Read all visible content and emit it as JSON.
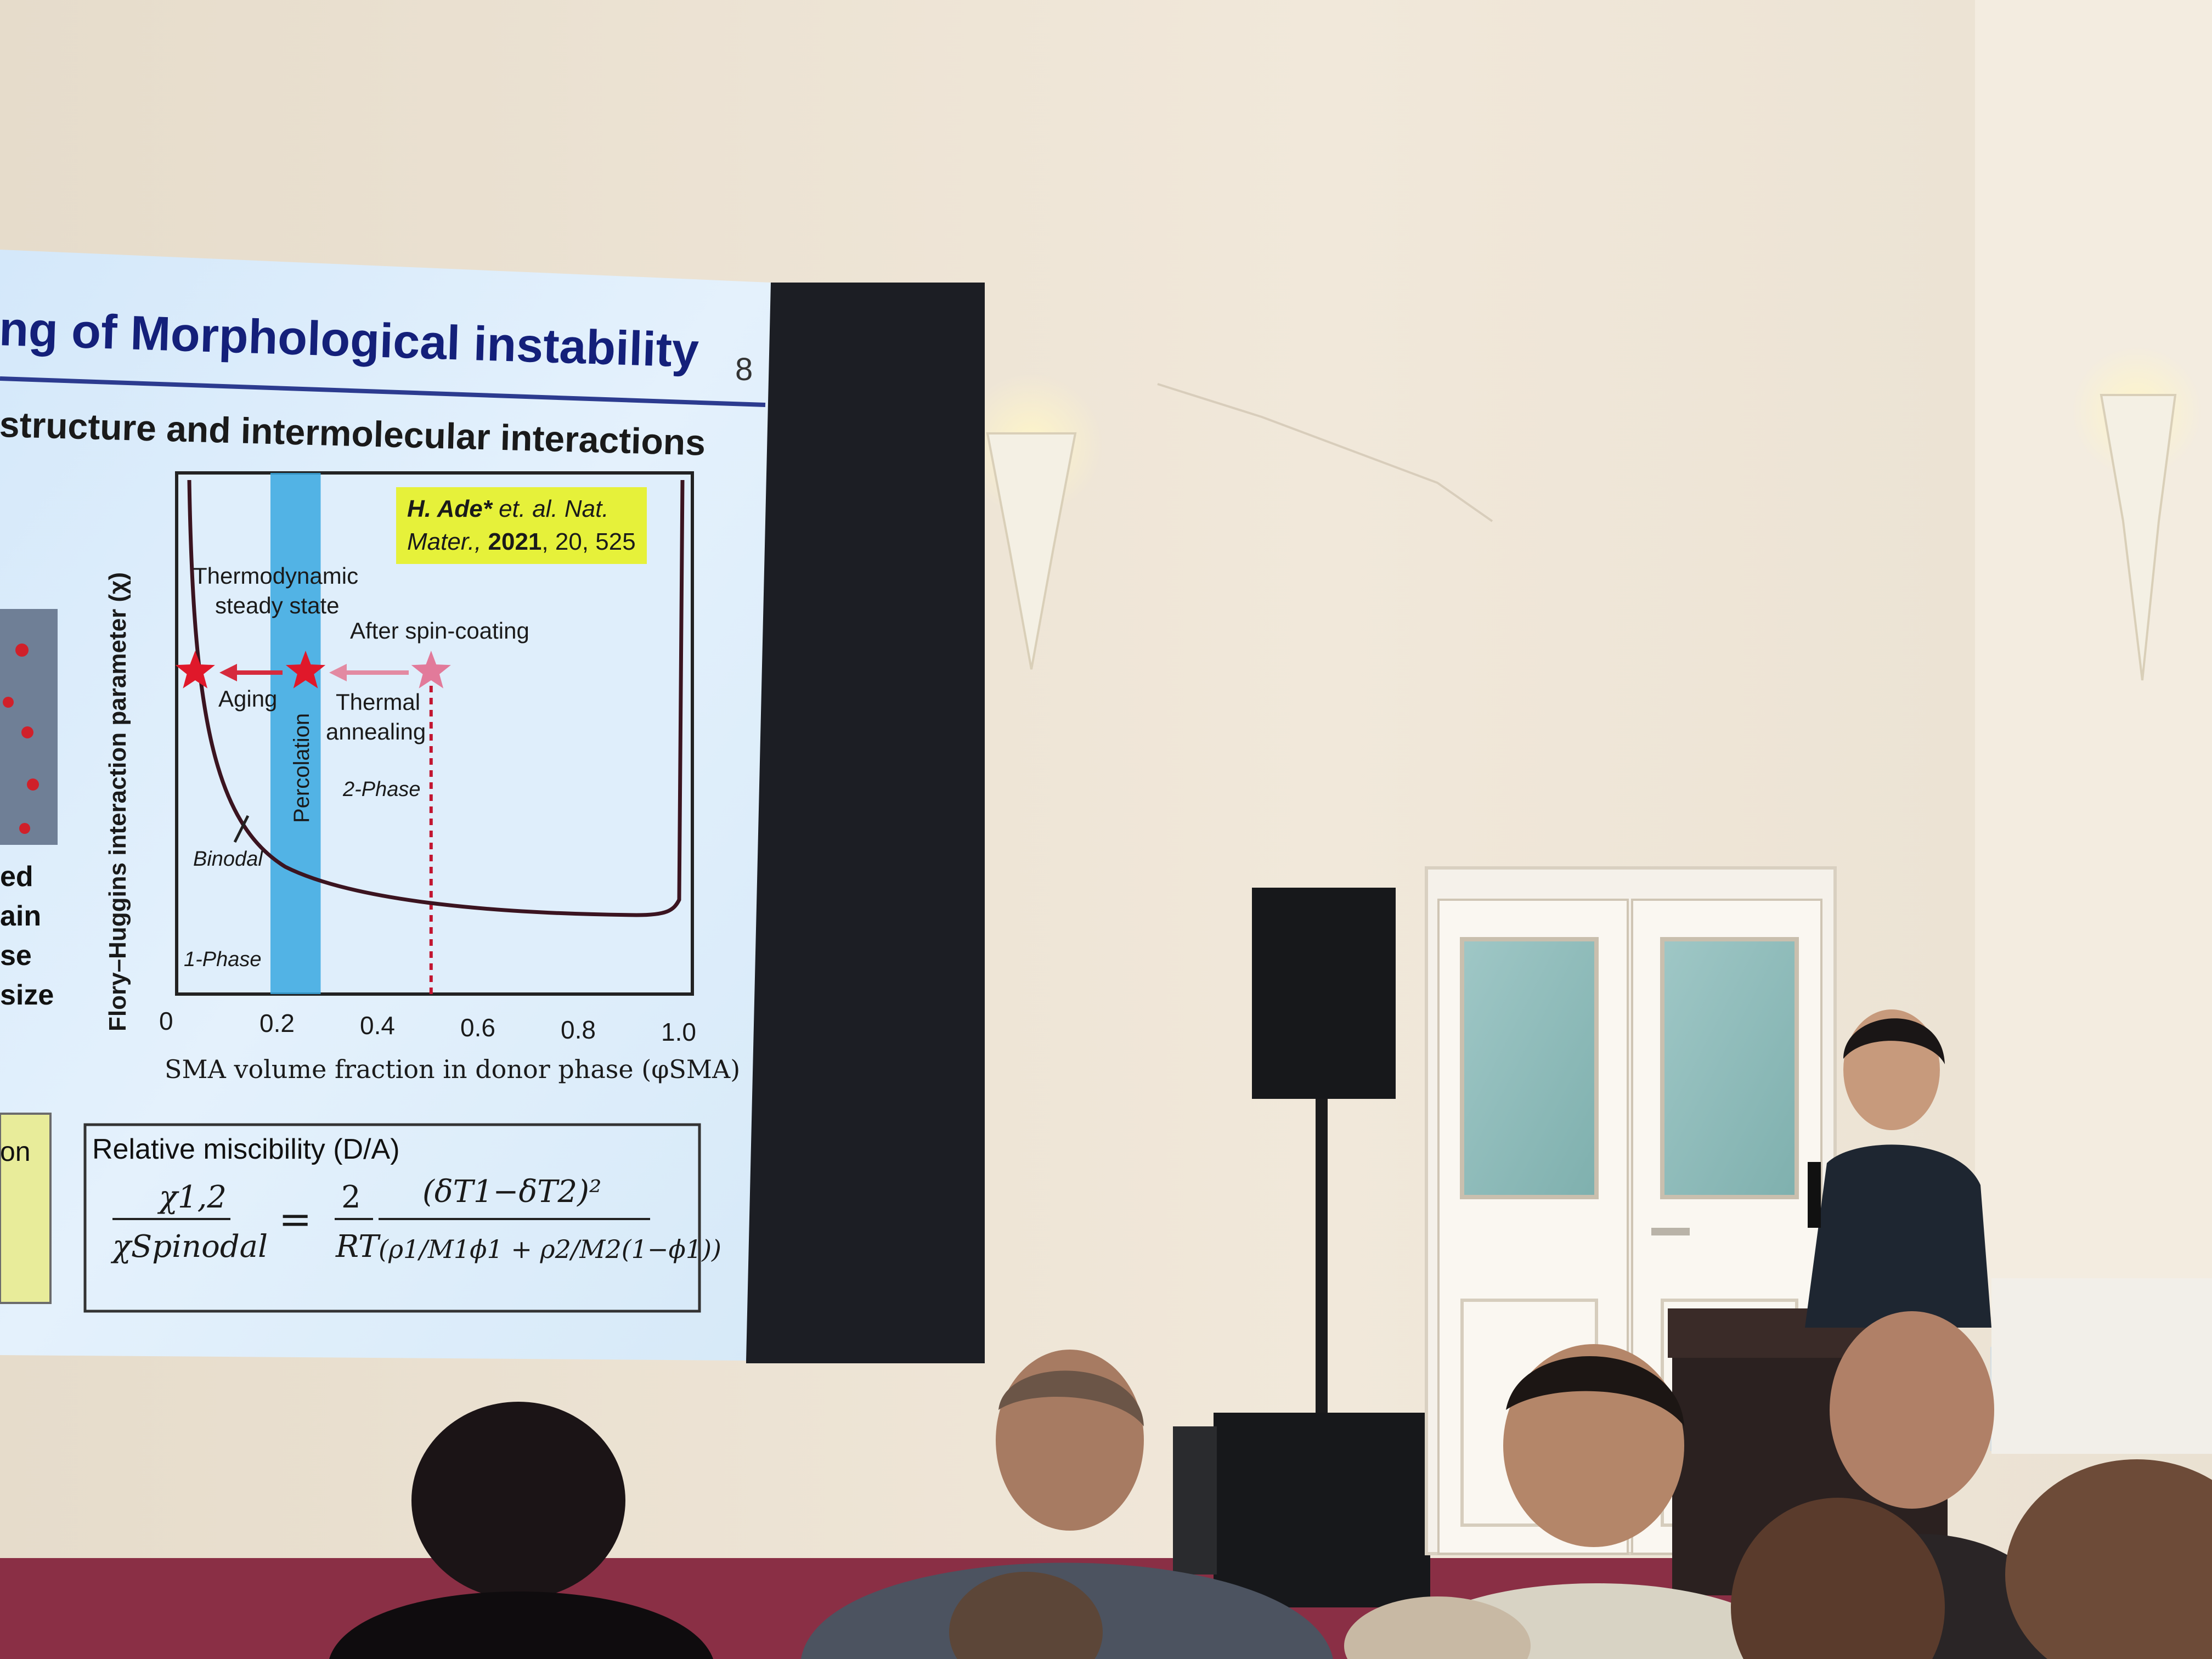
{
  "slide": {
    "title": "ng of Morphological instability",
    "page_number": "8",
    "subtitle": "structure and intermolecular interactions",
    "left_fragments": [
      "ed",
      "ain",
      "se",
      "size"
    ],
    "left_box_fragment": "on"
  },
  "chart_data": {
    "type": "line",
    "xlabel": "SMA volume fraction in donor phase (φSMA)",
    "ylabel": "Flory–Huggins interaction parameter (χ)",
    "x_ticks": [
      "0",
      "0.2",
      "0.4",
      "0.6",
      "0.8",
      "1.0"
    ],
    "xlim": [
      0,
      1.0
    ],
    "reference": {
      "authors": "H. Ade*",
      "rest1": " et. al. Nat.",
      "journal": "Mater., ",
      "year": "2021",
      "rest2": ", 20, 525"
    },
    "percolation_label": "Percolation",
    "percolation_range": [
      0.2,
      0.3
    ],
    "spin_coating_x": 0.52,
    "annotations": {
      "thermo": "Thermodynamic",
      "steady": "steady state",
      "after_spin": "After spin-coating",
      "aging": "Aging",
      "thermal": "Thermal",
      "annealing": "annealing",
      "two_phase": "2-Phase",
      "binodal": "Binodal",
      "one_phase": "1-Phase"
    },
    "stars": [
      {
        "x": 0.05,
        "color": "#e0182a"
      },
      {
        "x": 0.27,
        "color": "#e0182a"
      },
      {
        "x": 0.52,
        "color": "#e27a9a"
      }
    ]
  },
  "equation": {
    "title": "Relative miscibility  (D/A)",
    "lhs_num": "χ1,2",
    "lhs_den": "χSpinodal",
    "equals": "=",
    "coef_num": "2",
    "coef_den": "RT",
    "rhs_num": "(δT1−δT2)²",
    "rhs_den": "(ρ1/M1ϕ1 + ρ2/M2(1−ϕ1))"
  },
  "colors": {
    "slide_bg": "#dfeefb",
    "title_blue": "#14207a",
    "percolation_band": "#3aa8e0",
    "star_red": "#e0182a",
    "star_pink": "#e27a9a",
    "wall": "#efe6d8",
    "carpet": "#8a2f45"
  }
}
